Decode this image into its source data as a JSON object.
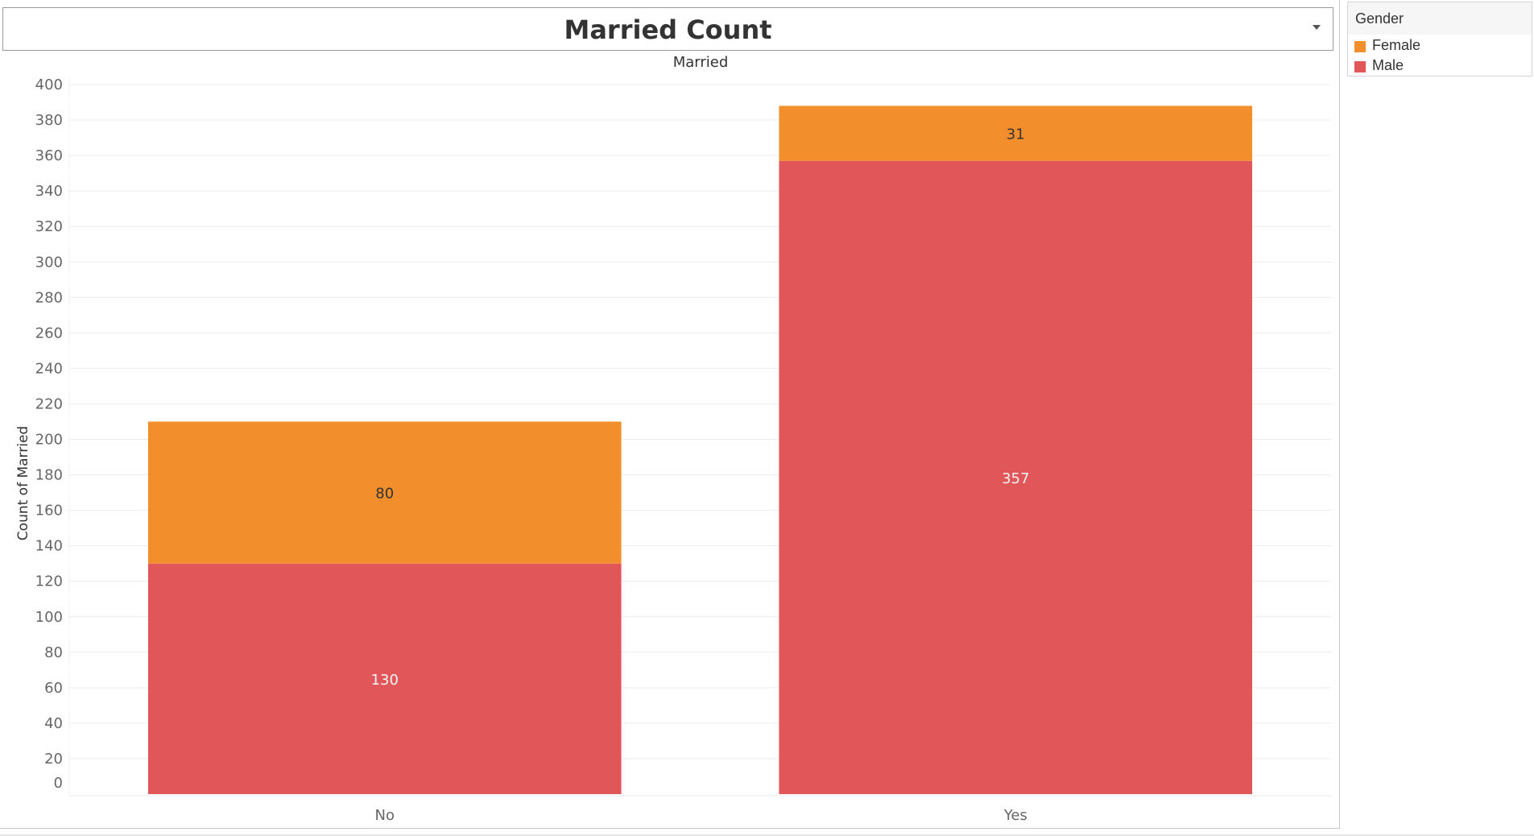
{
  "title": "Married Count",
  "colors": {
    "female": "#f28e2b",
    "male": "#e15759"
  },
  "legend": {
    "title": "Gender",
    "items": [
      {
        "label": "Female",
        "color": "#f28e2b"
      },
      {
        "label": "Male",
        "color": "#e15759"
      }
    ]
  },
  "chart_data": {
    "type": "bar",
    "stacked": true,
    "title": "Married Count",
    "xlabel": "Married",
    "ylabel": "Count of Married",
    "categories": [
      "No",
      "Yes"
    ],
    "series": [
      {
        "name": "Male",
        "values": [
          130,
          357
        ],
        "color": "#e15759"
      },
      {
        "name": "Female",
        "values": [
          80,
          31
        ],
        "color": "#f28e2b"
      }
    ],
    "ylim": [
      0,
      400
    ],
    "yticks": [
      0,
      20,
      40,
      60,
      80,
      100,
      120,
      140,
      160,
      180,
      200,
      220,
      240,
      260,
      280,
      300,
      320,
      340,
      360,
      380,
      400
    ],
    "grid": true,
    "legend_position": "right"
  }
}
